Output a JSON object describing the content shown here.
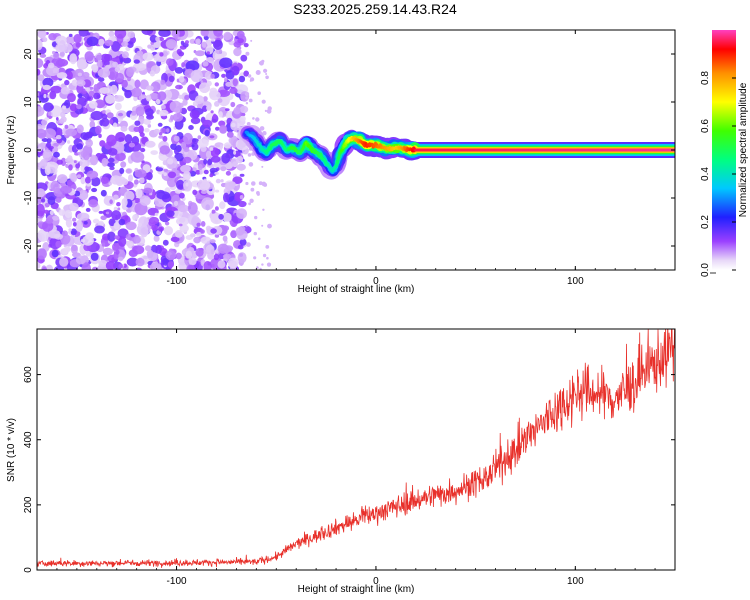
{
  "title": "S233.2025.259.14.43.R24",
  "chart_data": [
    {
      "type": "heatmap",
      "name": "spectrogram",
      "xlabel": "Height of straight line (km)",
      "ylabel": "Frequency (Hz)",
      "xlim": [
        -170,
        150
      ],
      "ylim": [
        -25,
        25
      ],
      "xticks": [
        -100,
        0,
        100
      ],
      "xtick_labels": [
        "-100",
        "0",
        "100"
      ],
      "yticks": [
        -20,
        -10,
        0,
        10,
        20
      ],
      "ytick_labels": [
        "-20",
        "-10",
        "0",
        "10",
        "20"
      ],
      "noise_region_x": [
        -170,
        -65
      ],
      "signal_track": {
        "x": [
          -65,
          -62,
          -58,
          -55,
          -52,
          -48,
          -45,
          -42,
          -38,
          -35,
          -32,
          -28,
          -25,
          -22,
          -20,
          -18,
          -15,
          -12,
          -8,
          -5,
          0,
          5,
          10,
          15,
          20,
          150
        ],
        "y": [
          3.5,
          3.0,
          0.5,
          -0.5,
          1.0,
          2.0,
          0.0,
          0.5,
          -0.5,
          1.5,
          0.0,
          -1.0,
          -2.5,
          -4.5,
          -3.5,
          -0.5,
          1.5,
          2.5,
          2.0,
          1.0,
          1.0,
          0.3,
          0.5,
          0.2,
          0.0,
          0.0
        ],
        "amplitude": [
          0.3,
          0.35,
          0.4,
          0.45,
          0.5,
          0.5,
          0.45,
          0.55,
          0.5,
          0.6,
          0.55,
          0.5,
          0.45,
          0.4,
          0.45,
          0.55,
          0.65,
          0.75,
          0.85,
          0.9,
          0.85,
          0.8,
          0.75,
          0.85,
          0.95,
          0.98
        ]
      },
      "colorbar": {
        "label": "Normalized spectral amplitude",
        "range": [
          0,
          1
        ],
        "ticks": [
          0.0,
          0.2,
          0.4,
          0.6,
          0.8
        ],
        "tick_labels": [
          "0.0",
          "0.2",
          "0.4",
          "0.6",
          "0.8"
        ]
      }
    },
    {
      "type": "line",
      "name": "snr",
      "xlabel": "Height of straight line (km)",
      "ylabel": "SNR (10 * v/v)",
      "xlim": [
        -170,
        150
      ],
      "ylim": [
        0,
        740
      ],
      "xticks": [
        -100,
        0,
        100
      ],
      "xtick_labels": [
        "-100",
        "0",
        "100"
      ],
      "yticks": [
        0,
        200,
        400,
        600
      ],
      "ytick_labels": [
        "0",
        "200",
        "400",
        "600"
      ],
      "line_color": "#e8302a",
      "trend": {
        "x": [
          -170,
          -100,
          -60,
          -50,
          -40,
          -20,
          0,
          20,
          40,
          55,
          70,
          85,
          100,
          110,
          120,
          130,
          140,
          150
        ],
        "y": [
          20,
          22,
          25,
          40,
          80,
          130,
          175,
          215,
          245,
          280,
          370,
          460,
          545,
          545,
          525,
          575,
          635,
          690
        ]
      }
    }
  ]
}
